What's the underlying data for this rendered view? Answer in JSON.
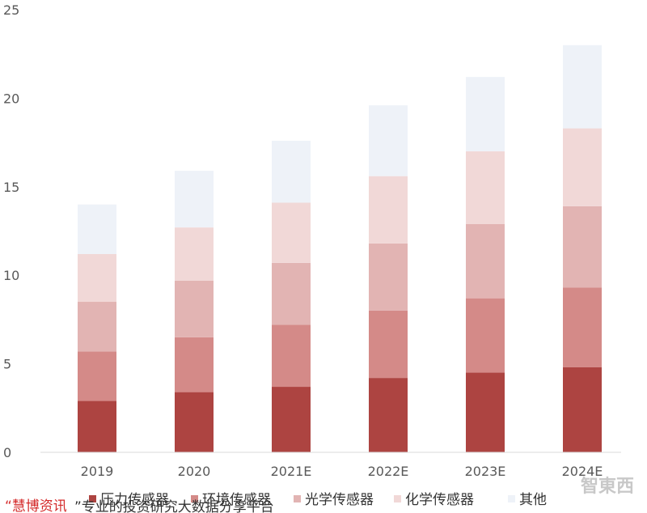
{
  "chart_data": {
    "type": "bar",
    "stacked": true,
    "title": "",
    "xlabel": "",
    "ylabel": "",
    "categories": [
      "2019",
      "2020",
      "2021E",
      "2022E",
      "2023E",
      "2024E"
    ],
    "ylim": [
      0,
      25
    ],
    "yticks": [
      "0",
      "5",
      "10",
      "15",
      "20",
      "25"
    ],
    "grid": false,
    "legend_position": "bottom",
    "series": [
      {
        "name": "压力传感器",
        "color": "#ad4441",
        "values": [
          2.9,
          3.4,
          3.7,
          4.2,
          4.5,
          4.8
        ]
      },
      {
        "name": "环境传感器",
        "color": "#d48a88",
        "values": [
          2.8,
          3.1,
          3.5,
          3.8,
          4.2,
          4.5
        ]
      },
      {
        "name": "光学传感器",
        "color": "#e2b4b3",
        "values": [
          2.8,
          3.2,
          3.5,
          3.8,
          4.2,
          4.6
        ]
      },
      {
        "name": "化学传感器",
        "color": "#f1d8d7",
        "values": [
          2.7,
          3.0,
          3.4,
          3.8,
          4.1,
          4.4
        ]
      },
      {
        "name": "其他",
        "color": "#eef2f8",
        "values": [
          2.8,
          3.2,
          3.5,
          4.0,
          4.2,
          4.7
        ]
      }
    ]
  },
  "overlay": {
    "source_red": "“慧博资讯",
    "source_dark": "”专业的投资研究大数据分享平台"
  },
  "watermark": {
    "text": "智東西"
  }
}
